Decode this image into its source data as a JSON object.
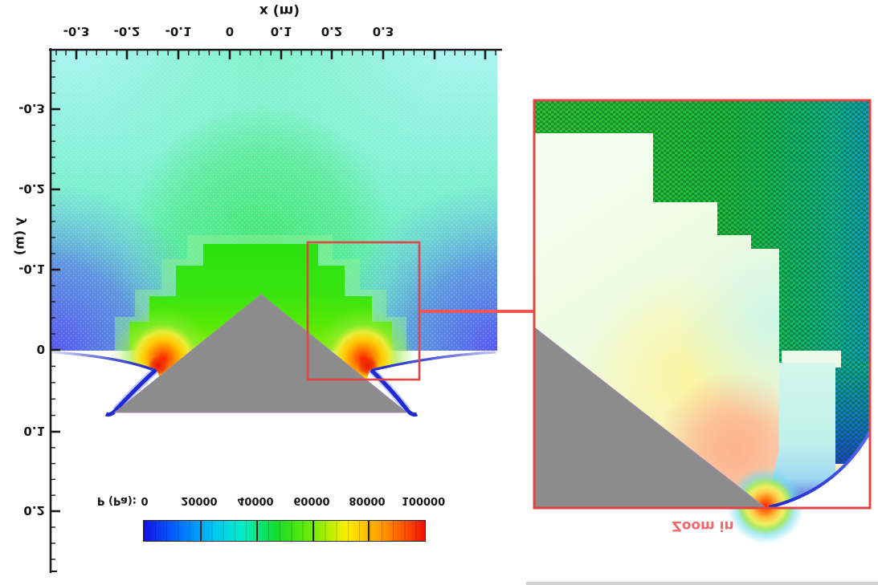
{
  "figure": {
    "note": "CFD pressure contour figure rendered upside-down (vertically mirrored text)"
  },
  "main_plot": {
    "x_axis": {
      "title": "x (m)",
      "tick_labels": [
        "-0.3",
        "-0.2",
        "-0.1",
        "0",
        "0.1",
        "0.2",
        "0.3"
      ]
    },
    "y_axis": {
      "title": "y (m)",
      "tick_labels": [
        "-0.3",
        "-0.2",
        "-0.1",
        "0",
        "0.1",
        "0.2"
      ]
    }
  },
  "colorbar": {
    "label": "P (Pa):",
    "tick_labels": [
      "0",
      "20000",
      "40000",
      "60000",
      "80000",
      "100000"
    ]
  },
  "inset": {
    "caption": "Zoom in"
  },
  "colors": {
    "accent_red": "#e04444",
    "connector_red": "#f05454",
    "caption_red": "#f06868",
    "wedge_gray": "#8c8c8c"
  },
  "chart_data": {
    "type": "heatmap",
    "title": "",
    "xlabel": "x (m)",
    "ylabel": "y (m)",
    "x_ticks": [
      -0.3,
      -0.2,
      -0.1,
      0,
      0.1,
      0.2,
      0.3
    ],
    "y_ticks": [
      -0.3,
      -0.2,
      -0.1,
      0,
      0.1,
      0.2
    ],
    "colorbar": {
      "label": "P (Pa)",
      "min": 0,
      "max": 100000,
      "ticks": [
        0,
        20000,
        40000,
        60000,
        80000,
        100000
      ],
      "palette": [
        "#1212e8",
        "#0072ff",
        "#00c6f2",
        "#00eec9",
        "#12dc2e",
        "#72ee00",
        "#ffee00",
        "#ffa000",
        "#ee1000"
      ]
    },
    "annotations": [
      "Zoom in"
    ],
    "description": "Pressure field around a triangular wedge (apex near x=0.06 m, y=0); stepped green shock front surrounds the body, peak pressure (red/orange, ~100000 Pa) at the wedge shoulders, low pressure (blue, ~0 Pa) in the wake band near y=0; red box marks region magnified in right inset showing the triangulated mesh; figure is displayed vertically mirrored."
  }
}
